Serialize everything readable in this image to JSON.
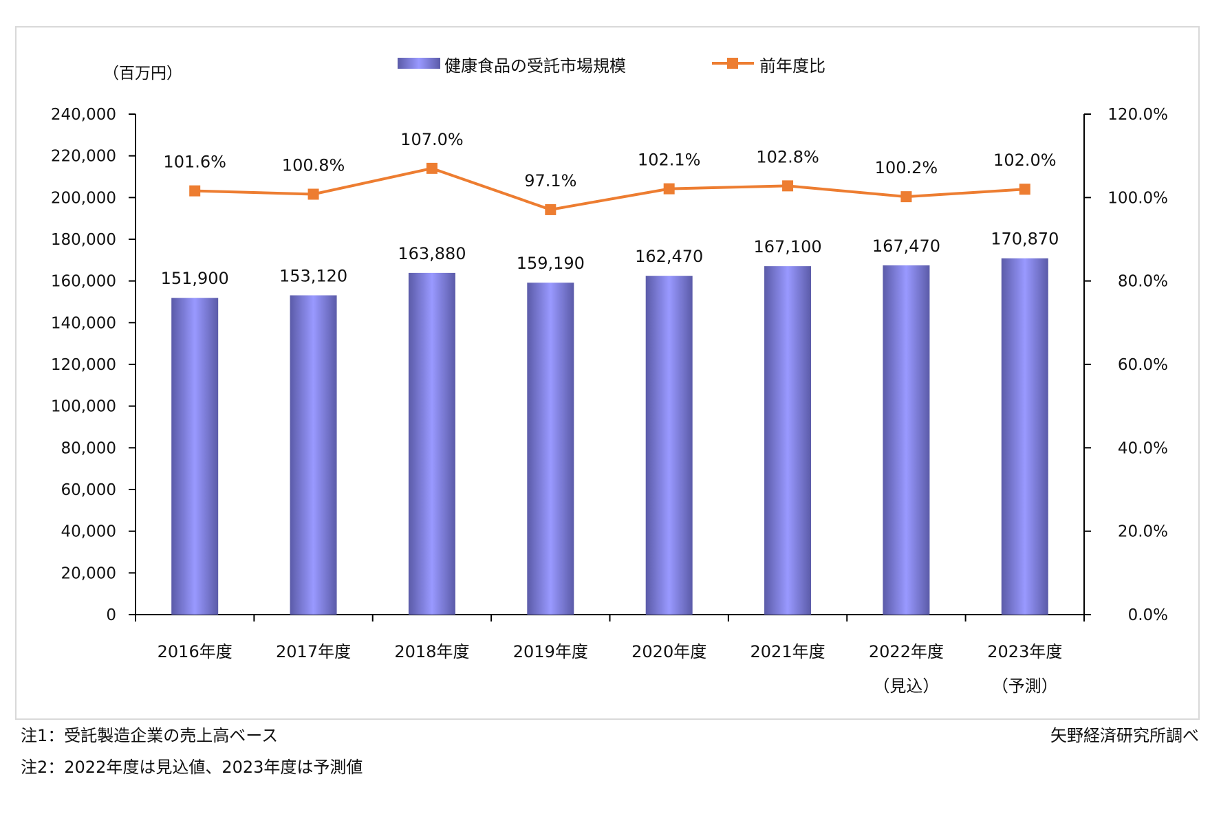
{
  "chart_data": {
    "type": "bar+line",
    "left_unit": "（百万円）",
    "categories": [
      "2016年度",
      "2017年度",
      "2018年度",
      "2019年度",
      "2020年度",
      "2021年度",
      "2022年度",
      "2023年度"
    ],
    "category_sublabels": [
      "",
      "",
      "",
      "",
      "",
      "",
      "（見込）",
      "（予測）"
    ],
    "series": [
      {
        "name": "健康食品の受託市場規模",
        "type": "bar",
        "axis": "left",
        "values": [
          151900,
          153120,
          163880,
          159190,
          162470,
          167100,
          167470,
          170870
        ],
        "labels": [
          "151,900",
          "153,120",
          "163,880",
          "159,190",
          "162,470",
          "167,100",
          "167,470",
          "170,870"
        ]
      },
      {
        "name": "前年度比",
        "type": "line",
        "axis": "right",
        "values": [
          101.6,
          100.8,
          107.0,
          97.1,
          102.1,
          102.8,
          100.2,
          102.0
        ],
        "labels": [
          "101.6%",
          "100.8%",
          "107.0%",
          "97.1%",
          "102.1%",
          "102.8%",
          "100.2%",
          "102.0%"
        ]
      }
    ],
    "left_axis": {
      "range": [
        0,
        240000
      ],
      "ticks": [
        "0",
        "20,000",
        "40,000",
        "60,000",
        "80,000",
        "100,000",
        "120,000",
        "140,000",
        "160,000",
        "180,000",
        "200,000",
        "220,000",
        "240,000"
      ]
    },
    "right_axis": {
      "range": [
        0,
        120
      ],
      "ticks": [
        "0.0%",
        "20.0%",
        "40.0%",
        "60.0%",
        "80.0%",
        "100.0%",
        "120.0%"
      ]
    },
    "legend_position": "top",
    "grid": false,
    "colors": {
      "bar": "#9999ff",
      "bar_edge": "#5b5ba8",
      "line": "#ed7d31"
    }
  },
  "notes": [
    "注1：受託製造企業の売上高ベース",
    "注2：2022年度は見込値、2023年度は予測値"
  ],
  "source": "矢野経済研究所調べ"
}
